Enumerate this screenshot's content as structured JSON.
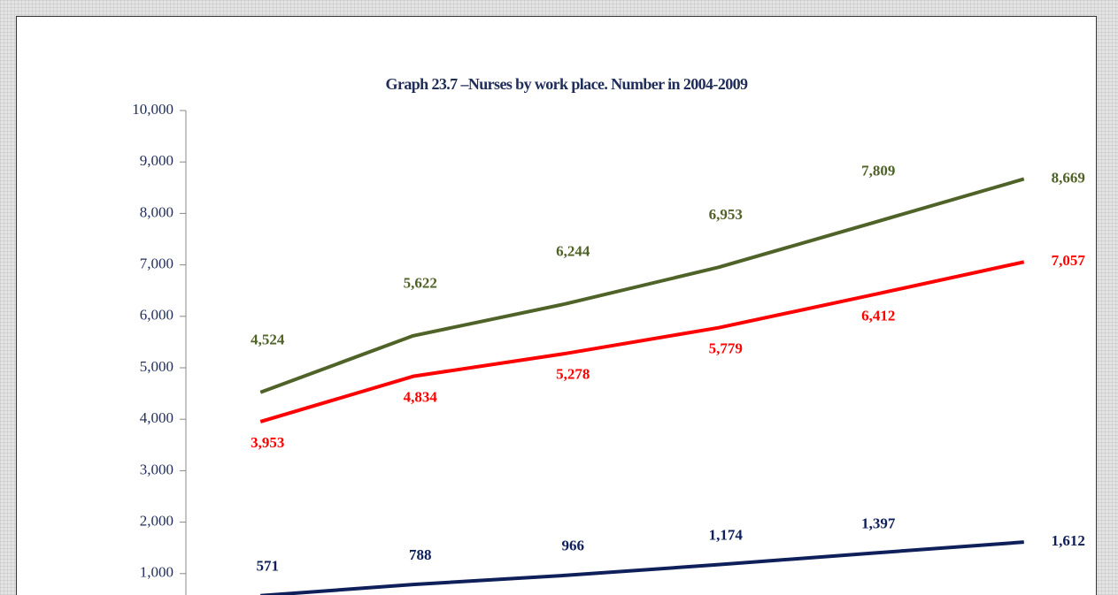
{
  "chart_data": {
    "type": "line",
    "title": "Graph 23.7 –Nurses by work place. Number in 2004-2009",
    "categories": [
      null,
      null,
      null,
      null,
      null,
      null
    ],
    "series": [
      {
        "color": "#4f6228",
        "values": [
          4524,
          5622,
          6244,
          6953,
          7809,
          8669
        ],
        "value_labels": [
          "4,524",
          "5,622",
          "6,244",
          "6,953",
          "7,809",
          "8,669"
        ]
      },
      {
        "color": "#ff0000",
        "values": [
          3953,
          4834,
          5278,
          5779,
          6412,
          7057
        ],
        "value_labels": [
          "3,953",
          "4,834",
          "5,278",
          "5,779",
          "6,412",
          "7,057"
        ]
      },
      {
        "color": "#0f1f5a",
        "values": [
          571,
          788,
          966,
          1174,
          1397,
          1612
        ],
        "value_labels": [
          "571",
          "788",
          "966",
          "1,174",
          "1,397",
          "1,612"
        ]
      }
    ],
    "ylim": [
      0,
      10000
    ],
    "yticks": [
      {
        "value": 1000,
        "label": "1,000"
      },
      {
        "value": 2000,
        "label": "2,000"
      },
      {
        "value": 3000,
        "label": "3,000"
      },
      {
        "value": 4000,
        "label": "4,000"
      },
      {
        "value": 5000,
        "label": "5,000"
      },
      {
        "value": 6000,
        "label": "6,000"
      },
      {
        "value": 7000,
        "label": "7,000"
      },
      {
        "value": 8000,
        "label": "8,000"
      },
      {
        "value": 9000,
        "label": "9,000"
      },
      {
        "value": 10000,
        "label": "10,000"
      }
    ]
  }
}
